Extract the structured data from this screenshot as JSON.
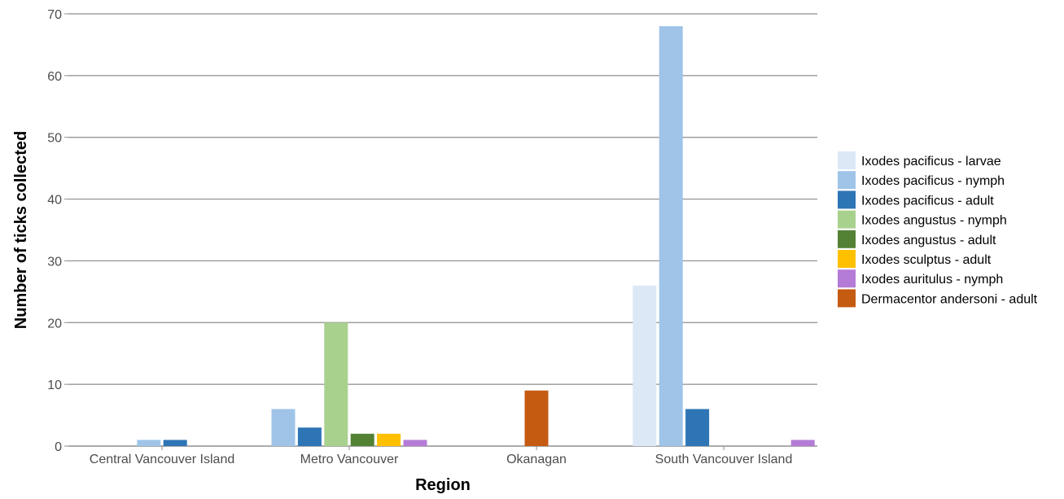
{
  "chart_data": {
    "type": "bar",
    "title": "",
    "xlabel": "Region",
    "ylabel": "Number of ticks collected",
    "ylim": [
      0,
      70
    ],
    "yticks": [
      0,
      10,
      20,
      30,
      40,
      50,
      60,
      70
    ],
    "grid": true,
    "legend_position": "right",
    "categories": [
      "Central Vancouver Island",
      "Metro Vancouver",
      "Okanagan",
      "South Vancouver Island"
    ],
    "series": [
      {
        "name": "Ixodes pacificus - larvae",
        "color": "#dce8f6",
        "values": [
          0,
          0,
          0,
          26
        ]
      },
      {
        "name": "Ixodes pacificus - nymph",
        "color": "#9fc4e8",
        "values": [
          1,
          6,
          0,
          68
        ]
      },
      {
        "name": "Ixodes pacificus - adult",
        "color": "#2e75b6",
        "values": [
          1,
          3,
          0,
          6
        ]
      },
      {
        "name": "Ixodes angustus - nymph",
        "color": "#a9d18e",
        "values": [
          0,
          20,
          0,
          0
        ]
      },
      {
        "name": "Ixodes angustus - adult",
        "color": "#548235",
        "values": [
          0,
          2,
          0,
          0
        ]
      },
      {
        "name": "Ixodes sculptus - adult",
        "color": "#ffc000",
        "values": [
          0,
          2,
          0,
          0
        ]
      },
      {
        "name": "Ixodes auritulus - nymph",
        "color": "#b47cd6",
        "values": [
          0,
          1,
          0,
          1
        ]
      },
      {
        "name": "Dermacentor andersoni - adult",
        "color": "#c55a11",
        "values": [
          0,
          0,
          9,
          0
        ]
      }
    ]
  }
}
